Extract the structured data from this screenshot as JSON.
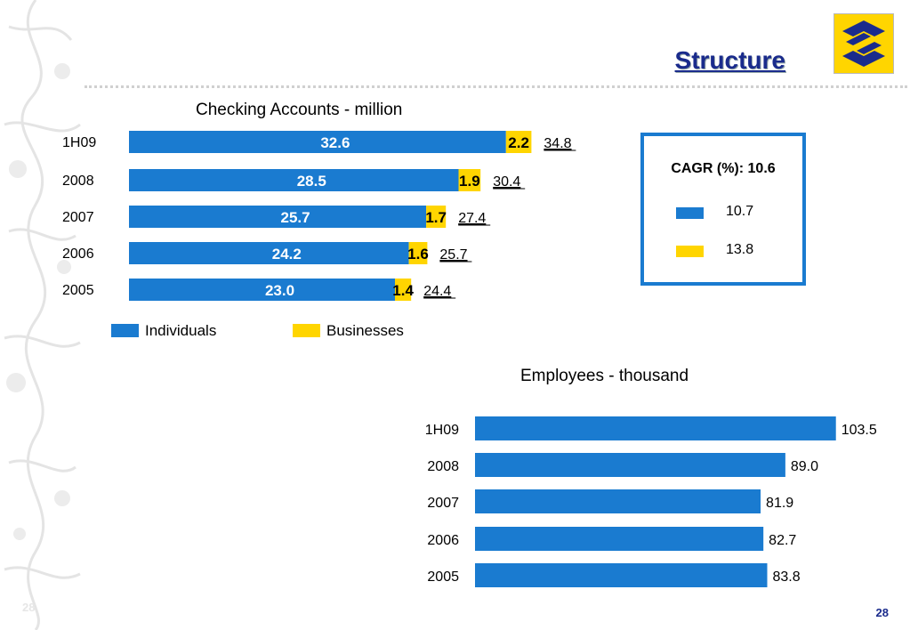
{
  "header": {
    "title": "Structure",
    "page_number": "28",
    "faint_page_number": "28"
  },
  "colors": {
    "individuals": "#1a7bd0",
    "businesses": "#ffd500",
    "title": "#1a2b8c",
    "logo_bg": "#ffd500"
  },
  "cagr": {
    "title": "CAGR (%): 10.6",
    "items": [
      {
        "value": "10.7",
        "color": "#1a7bd0"
      },
      {
        "value": "13.8",
        "color": "#ffd500"
      }
    ]
  },
  "legend": [
    {
      "label": "Individuals",
      "color": "#1a7bd0"
    },
    {
      "label": "Businesses",
      "color": "#ffd500"
    }
  ],
  "chart_data": [
    {
      "type": "bar",
      "orientation": "horizontal",
      "stacked": true,
      "title": "Checking Accounts - million",
      "categories": [
        "1H09",
        "2008",
        "2007",
        "2006",
        "2005"
      ],
      "series": [
        {
          "name": "Individuals",
          "values": [
            32.6,
            28.5,
            25.7,
            24.2,
            23.0
          ],
          "labels": [
            "32.6",
            "28.5",
            "25.7",
            "24.2",
            "23.0"
          ]
        },
        {
          "name": "Businesses",
          "values": [
            2.2,
            1.9,
            1.7,
            1.6,
            1.4
          ],
          "labels": [
            "2.2",
            "1.9",
            "1.7",
            "1.6",
            "1.4"
          ]
        }
      ],
      "totals": [
        "34.8",
        "30.4",
        "27.4",
        "25.7",
        "24.4"
      ],
      "legend_position": "bottom"
    },
    {
      "type": "bar",
      "orientation": "horizontal",
      "title": "Employees - thousand",
      "categories": [
        "1H09",
        "2008",
        "2007",
        "2006",
        "2005"
      ],
      "series": [
        {
          "values": [
            103.5,
            89.0,
            81.9,
            82.7,
            83.8
          ],
          "labels": [
            "103.5",
            "89.0",
            "81.9",
            "82.7",
            "83.8"
          ]
        }
      ]
    }
  ]
}
